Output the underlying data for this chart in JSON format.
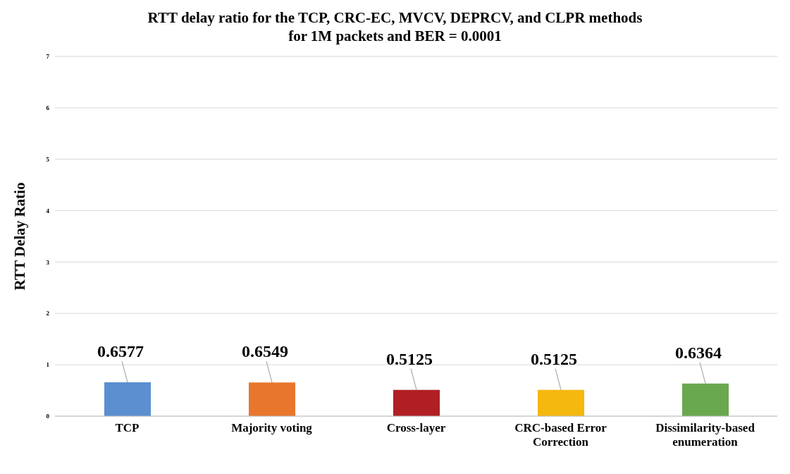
{
  "chart_data": {
    "type": "bar",
    "title": "RTT delay ratio for the TCP, CRC-EC, MVCV, DEPRCV, and CLPR methods\nfor 1M  packets and BER = 0.0001",
    "ylabel": "RTT Delay Ratio",
    "categories": [
      "TCP",
      "Majority voting",
      "Cross-layer",
      "CRC-based Error Correction",
      "Dissimilarity-based enumeration"
    ],
    "values": [
      0.6577,
      0.6549,
      0.5125,
      0.5125,
      0.6364
    ],
    "colors": [
      "#5b8fd0",
      "#e8762d",
      "#b01f24",
      "#f5b80f",
      "#6aa84f"
    ],
    "ylim": [
      0,
      7
    ],
    "yticks": [
      0,
      1,
      2,
      3,
      4,
      5,
      6,
      7
    ],
    "grid": "y",
    "data_labels": true
  }
}
